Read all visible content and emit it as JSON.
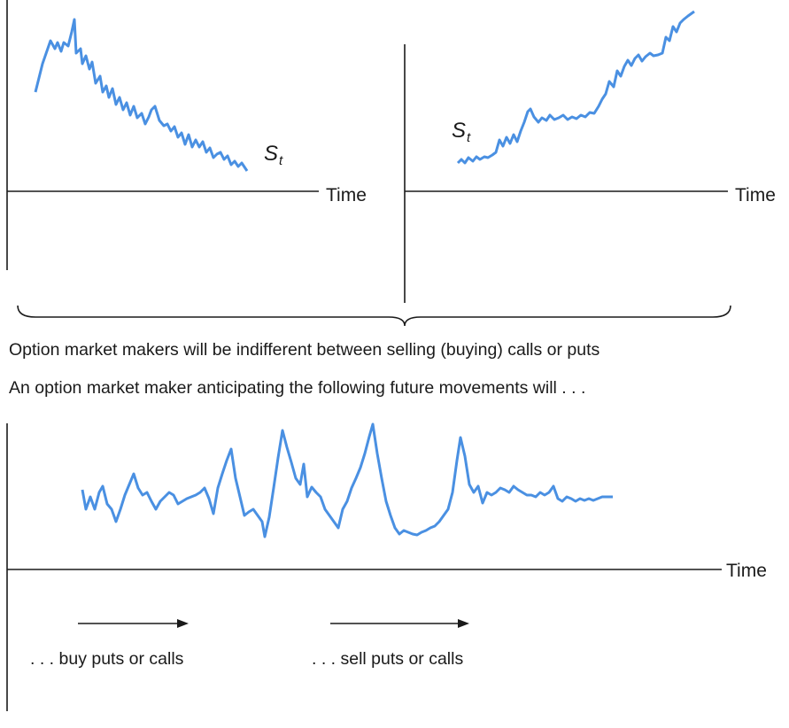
{
  "top_left_panel": {
    "axis_label": "Time",
    "series_label": "S",
    "series_subscript": "t"
  },
  "top_right_panel": {
    "axis_label": "Time",
    "series_label": "S",
    "series_subscript": "t"
  },
  "statements": {
    "indifference": "Option market makers will be indifferent between selling (buying) calls or puts",
    "anticipation": "An option market maker anticipating the following future movements will . . ."
  },
  "bottom_panel": {
    "axis_label": "Time",
    "buy_label": ". . . buy puts or calls",
    "sell_label": ". . . sell puts or calls"
  },
  "colors": {
    "path": "#4a90e2",
    "ink": "#1a1a1a"
  }
}
